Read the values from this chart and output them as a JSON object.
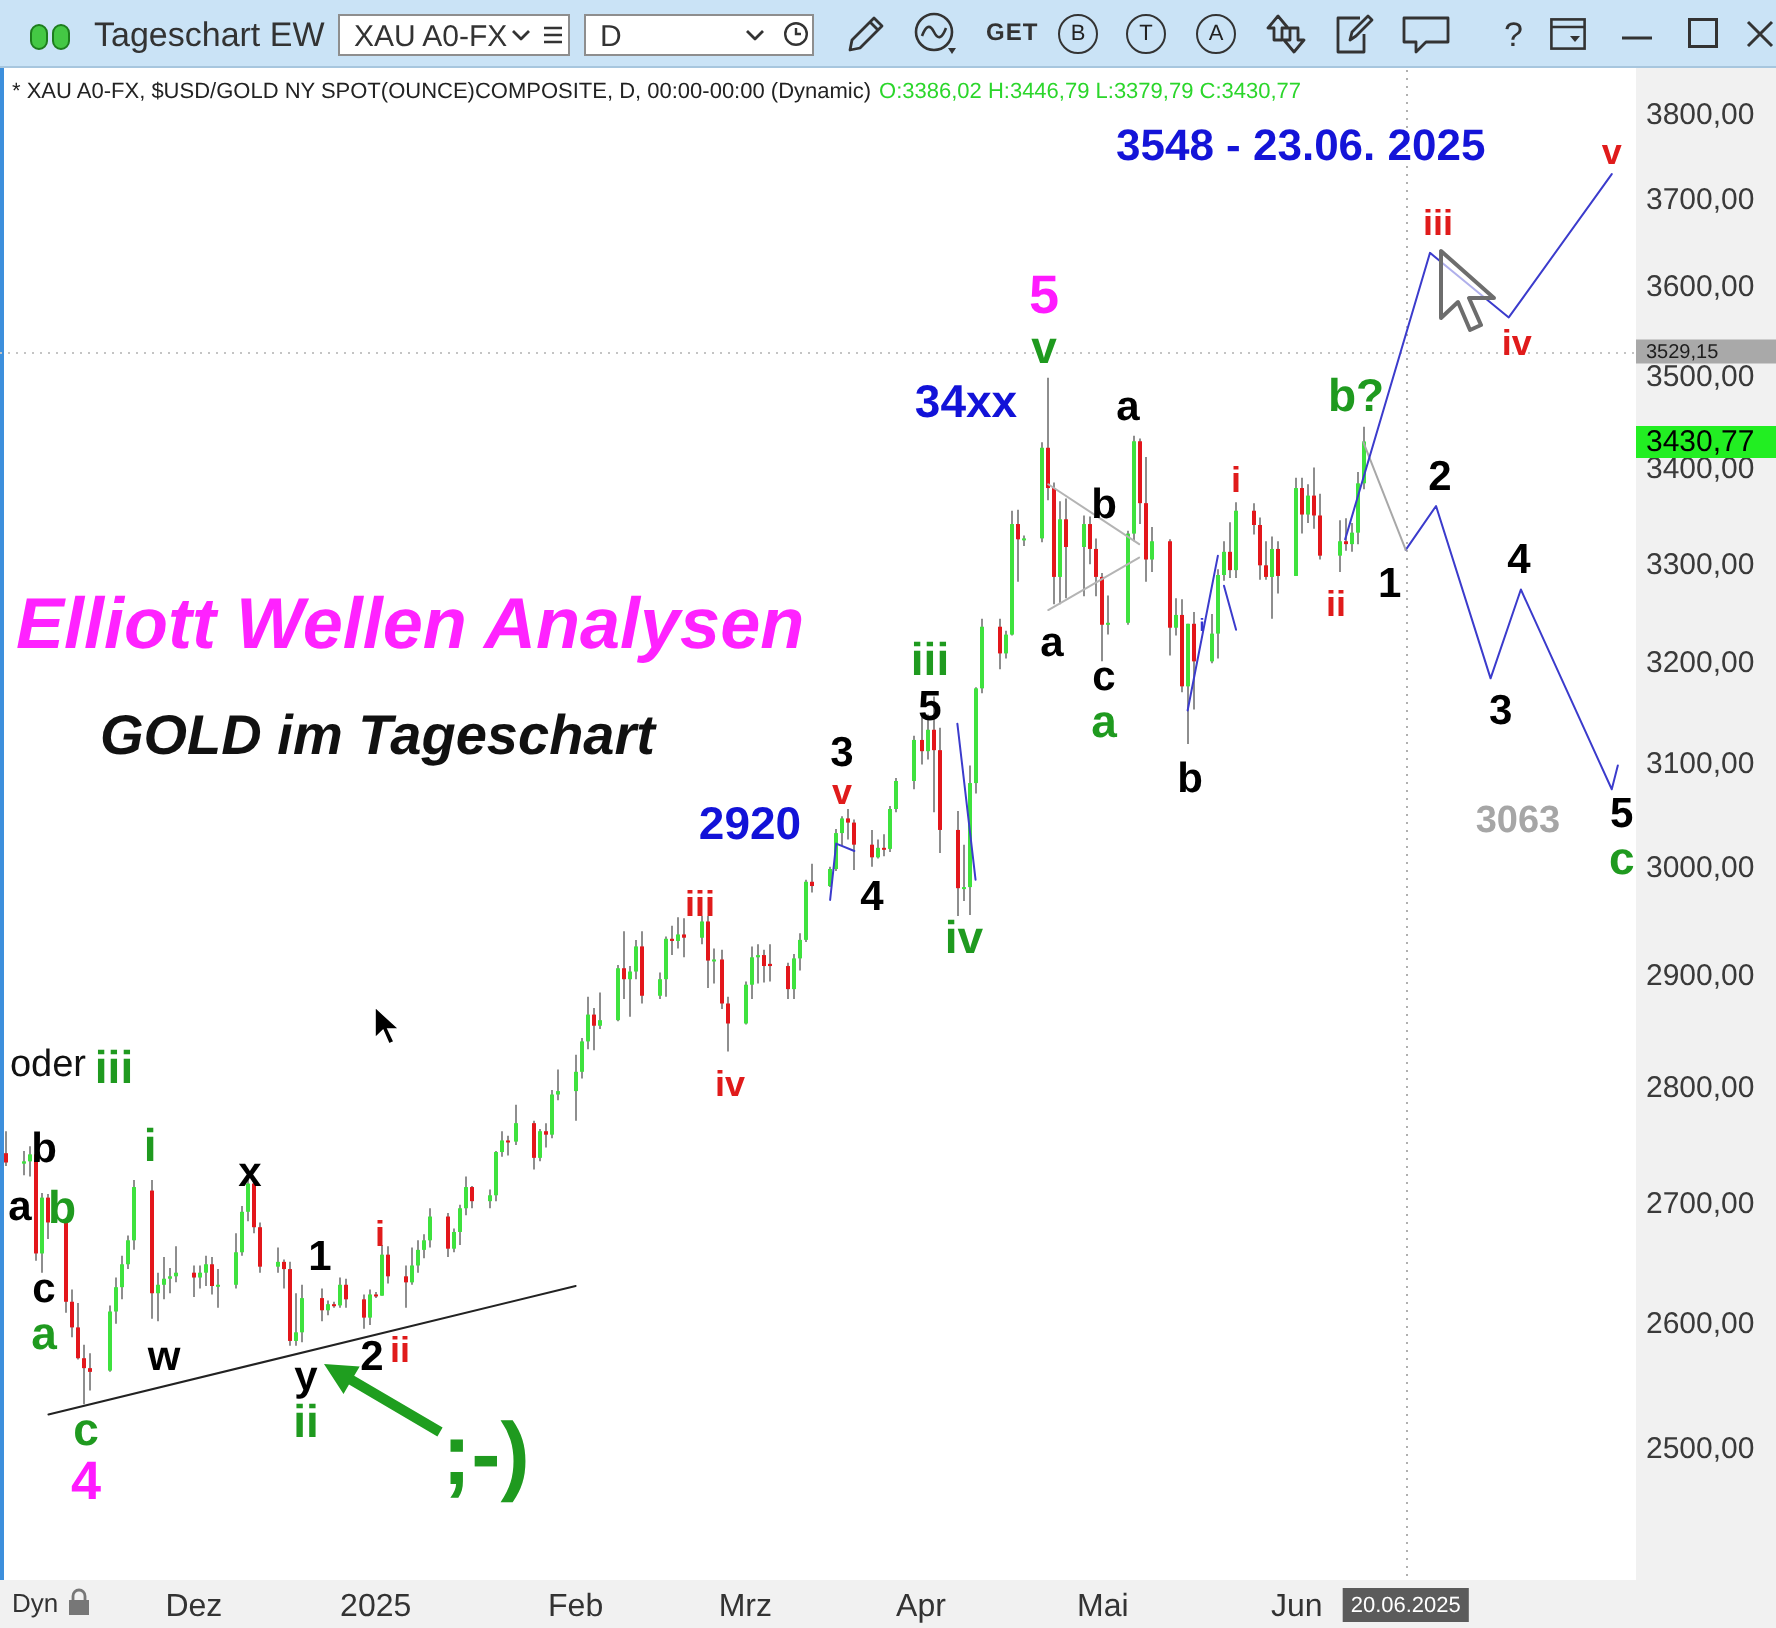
{
  "chart_data": {
    "type": "candlestick",
    "title": "Elliott Wellen Analysen",
    "subtitle": "GOLD im Tageschart",
    "log": true,
    "xlim": [
      "2024-10-31",
      "2025-07-28"
    ],
    "xticks": [
      {
        "value": "2024-12-02",
        "label": "Dez"
      },
      {
        "value": "2025-01-01",
        "label": "2025"
      },
      {
        "value": "2025-02-03",
        "label": "Feb"
      },
      {
        "value": "2025-03-03",
        "label": "Mrz"
      },
      {
        "value": "2025-04-01",
        "label": "Apr"
      },
      {
        "value": "2025-05-01",
        "label": "Mai"
      },
      {
        "value": "2025-06-02",
        "label": "Jun"
      }
    ],
    "ylim": [
      2400,
      3855
    ],
    "yticks": [
      {
        "value": 2500,
        "label": "2500,00"
      },
      {
        "value": 2600,
        "label": "2600,00"
      },
      {
        "value": 2700,
        "label": "2700,00"
      },
      {
        "value": 2800,
        "label": "2800,00"
      },
      {
        "value": 2900,
        "label": "2900,00"
      },
      {
        "value": 3000,
        "label": "3000,00"
      },
      {
        "value": 3100,
        "label": "3100,00"
      },
      {
        "value": 3200,
        "label": "3200,00"
      },
      {
        "value": 3300,
        "label": "3300,00"
      },
      {
        "value": 3400,
        "label": "3400,00"
      },
      {
        "value": 3500,
        "label": "3500,00"
      },
      {
        "value": 3600,
        "label": "3600,00"
      },
      {
        "value": 3700,
        "label": "3700,00"
      },
      {
        "value": 3800,
        "label": "3800,00"
      }
    ],
    "x": [
      "2024-11-01",
      "2024-11-04",
      "2024-11-05",
      "2024-11-06",
      "2024-11-07",
      "2024-11-08",
      "2024-11-11",
      "2024-11-12",
      "2024-11-13",
      "2024-11-14",
      "2024-11-15",
      "2024-11-18",
      "2024-11-19",
      "2024-11-20",
      "2024-11-21",
      "2024-11-22",
      "2024-11-25",
      "2024-11-26",
      "2024-11-27",
      "2024-11-28",
      "2024-11-29",
      "2024-12-02",
      "2024-12-03",
      "2024-12-04",
      "2024-12-05",
      "2024-12-06",
      "2024-12-09",
      "2024-12-10",
      "2024-12-11",
      "2024-12-12",
      "2024-12-13",
      "2024-12-16",
      "2024-12-17",
      "2024-12-18",
      "2024-12-19",
      "2024-12-20",
      "2024-12-23",
      "2024-12-24",
      "2024-12-25",
      "2024-12-26",
      "2024-12-27",
      "2024-12-30",
      "2024-12-31",
      "2025-01-01",
      "2025-01-02",
      "2025-01-03",
      "2025-01-06",
      "2025-01-07",
      "2025-01-08",
      "2025-01-09",
      "2025-01-10",
      "2025-01-13",
      "2025-01-14",
      "2025-01-15",
      "2025-01-16",
      "2025-01-17",
      "2025-01-20",
      "2025-01-21",
      "2025-01-22",
      "2025-01-23",
      "2025-01-24",
      "2025-01-27",
      "2025-01-28",
      "2025-01-29",
      "2025-01-30",
      "2025-01-31",
      "2025-02-03",
      "2025-02-04",
      "2025-02-05",
      "2025-02-06",
      "2025-02-07",
      "2025-02-10",
      "2025-02-11",
      "2025-02-12",
      "2025-02-13",
      "2025-02-14",
      "2025-02-17",
      "2025-02-18",
      "2025-02-19",
      "2025-02-20",
      "2025-02-21",
      "2025-02-24",
      "2025-02-25",
      "2025-02-26",
      "2025-02-27",
      "2025-02-28",
      "2025-03-03",
      "2025-03-04",
      "2025-03-05",
      "2025-03-06",
      "2025-03-07",
      "2025-03-10",
      "2025-03-11",
      "2025-03-12",
      "2025-03-13",
      "2025-03-14",
      "2025-03-17",
      "2025-03-18",
      "2025-03-19",
      "2025-03-20",
      "2025-03-21",
      "2025-03-24",
      "2025-03-25",
      "2025-03-26",
      "2025-03-27",
      "2025-03-28",
      "2025-03-31",
      "2025-04-01",
      "2025-04-02",
      "2025-04-03",
      "2025-04-04",
      "2025-04-07",
      "2025-04-08",
      "2025-04-09",
      "2025-04-10",
      "2025-04-11",
      "2025-04-14",
      "2025-04-15",
      "2025-04-16",
      "2025-04-17",
      "2025-04-18",
      "2025-04-21",
      "2025-04-22",
      "2025-04-23",
      "2025-04-24",
      "2025-04-25",
      "2025-04-28",
      "2025-04-29",
      "2025-04-30",
      "2025-05-01",
      "2025-05-02",
      "2025-05-05",
      "2025-05-06",
      "2025-05-07",
      "2025-05-08",
      "2025-05-09",
      "2025-05-12",
      "2025-05-13",
      "2025-05-14",
      "2025-05-15",
      "2025-05-16",
      "2025-05-19",
      "2025-05-20",
      "2025-05-21",
      "2025-05-22",
      "2025-05-23",
      "2025-05-26",
      "2025-05-27",
      "2025-05-28",
      "2025-05-29",
      "2025-05-30",
      "2025-06-02",
      "2025-06-03",
      "2025-06-04",
      "2025-06-05",
      "2025-06-06",
      "2025-06-09",
      "2025-06-10",
      "2025-06-11",
      "2025-06-12",
      "2025-06-13"
    ],
    "ohlc": [
      [
        2744,
        2763,
        2733,
        2736
      ],
      [
        2735,
        2746,
        2725,
        2737
      ],
      [
        2737,
        2750,
        2724,
        2743
      ],
      [
        2743,
        2749,
        2653,
        2659
      ],
      [
        2659,
        2710,
        2643,
        2706
      ],
      [
        2706,
        2709,
        2671,
        2685
      ],
      [
        2685,
        2686,
        2610,
        2619
      ],
      [
        2619,
        2629,
        2590,
        2598
      ],
      [
        2598,
        2618,
        2572,
        2573
      ],
      [
        2573,
        2584,
        2536,
        2565
      ],
      [
        2565,
        2577,
        2547,
        2562
      ],
      [
        2563,
        2616,
        2562,
        2611
      ],
      [
        2611,
        2639,
        2601,
        2631
      ],
      [
        2631,
        2657,
        2621,
        2650
      ],
      [
        2650,
        2674,
        2646,
        2670
      ],
      [
        2670,
        2721,
        2662,
        2715
      ],
      [
        2712,
        2721,
        2605,
        2626
      ],
      [
        2626,
        2643,
        2603,
        2633
      ],
      [
        2633,
        2656,
        2621,
        2638
      ],
      [
        2638,
        2647,
        2626,
        2640
      ],
      [
        2640,
        2665,
        2635,
        2643
      ],
      [
        2643,
        2649,
        2623,
        2639
      ],
      [
        2639,
        2649,
        2630,
        2643
      ],
      [
        2643,
        2657,
        2632,
        2650
      ],
      [
        2650,
        2656,
        2625,
        2632
      ],
      [
        2632,
        2646,
        2614,
        2633
      ],
      [
        2633,
        2676,
        2630,
        2660
      ],
      [
        2660,
        2699,
        2657,
        2694
      ],
      [
        2694,
        2726,
        2686,
        2718
      ],
      [
        2718,
        2721,
        2676,
        2681
      ],
      [
        2681,
        2685,
        2643,
        2648
      ],
      [
        2648,
        2664,
        2643,
        2652
      ],
      [
        2652,
        2654,
        2630,
        2646
      ],
      [
        2646,
        2652,
        2583,
        2587
      ],
      [
        2587,
        2626,
        2583,
        2594
      ],
      [
        2594,
        2633,
        2586,
        2622
      ],
      [
        2622,
        2630,
        2603,
        2612
      ],
      [
        2612,
        2620,
        2608,
        2617
      ],
      [
        2617,
        2619,
        2614,
        2616
      ],
      [
        2616,
        2639,
        2614,
        2633
      ],
      [
        2633,
        2638,
        2614,
        2621
      ],
      [
        2621,
        2625,
        2597,
        2606
      ],
      [
        2606,
        2629,
        2600,
        2625
      ],
      [
        2625,
        2627,
        2622,
        2624
      ],
      [
        2624,
        2666,
        2624,
        2658
      ],
      [
        2658,
        2665,
        2634,
        2640
      ],
      [
        2640,
        2649,
        2614,
        2635
      ],
      [
        2635,
        2664,
        2633,
        2649
      ],
      [
        2649,
        2670,
        2643,
        2662
      ],
      [
        2662,
        2675,
        2655,
        2670
      ],
      [
        2670,
        2697,
        2664,
        2690
      ],
      [
        2690,
        2693,
        2656,
        2663
      ],
      [
        2663,
        2680,
        2660,
        2677
      ],
      [
        2677,
        2700,
        2666,
        2697
      ],
      [
        2697,
        2724,
        2691,
        2715
      ],
      [
        2715,
        2716,
        2697,
        2703
      ],
      [
        2703,
        2713,
        2697,
        2708
      ],
      [
        2708,
        2746,
        2703,
        2745
      ],
      [
        2745,
        2763,
        2741,
        2755
      ],
      [
        2755,
        2759,
        2742,
        2754
      ],
      [
        2754,
        2786,
        2751,
        2770
      ],
      [
        2770,
        2772,
        2730,
        2740
      ],
      [
        2740,
        2765,
        2737,
        2763
      ],
      [
        2763,
        2770,
        2749,
        2760
      ],
      [
        2760,
        2799,
        2757,
        2795
      ],
      [
        2795,
        2817,
        2790,
        2798
      ],
      [
        2798,
        2830,
        2772,
        2815
      ],
      [
        2815,
        2845,
        2809,
        2842
      ],
      [
        2842,
        2882,
        2835,
        2866
      ],
      [
        2866,
        2872,
        2834,
        2856
      ],
      [
        2856,
        2886,
        2853,
        2861
      ],
      [
        2861,
        2911,
        2860,
        2908
      ],
      [
        2908,
        2942,
        2880,
        2898
      ],
      [
        2898,
        2910,
        2864,
        2905
      ],
      [
        2905,
        2934,
        2898,
        2928
      ],
      [
        2928,
        2942,
        2876,
        2883
      ],
      [
        2883,
        2904,
        2880,
        2898
      ],
      [
        2898,
        2937,
        2882,
        2935
      ],
      [
        2935,
        2947,
        2920,
        2933
      ],
      [
        2933,
        2955,
        2926,
        2939
      ],
      [
        2939,
        2954,
        2918,
        2936
      ],
      [
        2936,
        2956,
        2930,
        2951
      ],
      [
        2951,
        2956,
        2890,
        2915
      ],
      [
        2915,
        2926,
        2894,
        2916
      ],
      [
        2916,
        2925,
        2871,
        2876
      ],
      [
        2876,
        2882,
        2833,
        2858
      ],
      [
        2858,
        2896,
        2857,
        2893
      ],
      [
        2893,
        2928,
        2880,
        2918
      ],
      [
        2918,
        2930,
        2894,
        2920
      ],
      [
        2920,
        2925,
        2895,
        2910
      ],
      [
        2912,
        2930,
        2896,
        2910
      ],
      [
        2910,
        2913,
        2880,
        2889
      ],
      [
        2889,
        2921,
        2880,
        2917
      ],
      [
        2917,
        2940,
        2906,
        2934
      ],
      [
        2934,
        2990,
        2932,
        2988
      ],
      [
        2988,
        3005,
        2978,
        2984
      ],
      [
        2984,
        3002,
        2983,
        3000
      ],
      [
        3000,
        3038,
        2998,
        3034
      ],
      [
        3034,
        3050,
        3022,
        3048
      ],
      [
        3048,
        3057,
        3028,
        3044
      ],
      [
        3044,
        3047,
        2999,
        3023
      ],
      [
        3023,
        3037,
        3002,
        3011
      ],
      [
        3011,
        3028,
        3010,
        3020
      ],
      [
        3020,
        3033,
        3012,
        3019
      ],
      [
        3019,
        3060,
        3016,
        3057
      ],
      [
        3057,
        3087,
        3054,
        3084
      ],
      [
        3084,
        3128,
        3076,
        3124
      ],
      [
        3124,
        3149,
        3100,
        3113
      ],
      [
        3113,
        3149,
        3105,
        3134
      ],
      [
        3134,
        3167,
        3054,
        3114
      ],
      [
        3114,
        3136,
        3015,
        3037
      ],
      [
        3037,
        3055,
        2956,
        2982
      ],
      [
        2982,
        3023,
        2970,
        2983
      ],
      [
        2983,
        3099,
        2957,
        3082
      ],
      [
        3082,
        3176,
        3072,
        3175
      ],
      [
        3175,
        3245,
        3170,
        3237
      ],
      [
        3237,
        3245,
        3194,
        3210
      ],
      [
        3210,
        3233,
        3205,
        3229
      ],
      [
        3229,
        3357,
        3228,
        3343
      ],
      [
        3343,
        3358,
        3283,
        3327
      ],
      [
        3327,
        3331,
        3320,
        3328
      ],
      [
        3328,
        3430,
        3324,
        3424
      ],
      [
        3424,
        3500,
        3368,
        3381
      ],
      [
        3381,
        3387,
        3260,
        3288
      ],
      [
        3288,
        3367,
        3260,
        3348
      ],
      [
        3348,
        3370,
        3266,
        3319
      ],
      [
        3319,
        3352,
        3268,
        3343
      ],
      [
        3343,
        3351,
        3301,
        3317
      ],
      [
        3317,
        3328,
        3268,
        3288
      ],
      [
        3288,
        3292,
        3202,
        3239
      ],
      [
        3239,
        3269,
        3229,
        3241
      ],
      [
        3241,
        3336,
        3239,
        3333
      ],
      [
        3333,
        3437,
        3325,
        3431
      ],
      [
        3431,
        3434,
        3343,
        3365
      ],
      [
        3365,
        3414,
        3283,
        3306
      ],
      [
        3306,
        3340,
        3293,
        3325
      ],
      [
        3325,
        3327,
        3208,
        3236
      ],
      [
        3236,
        3266,
        3228,
        3249
      ],
      [
        3249,
        3265,
        3171,
        3177
      ],
      [
        3177,
        3240,
        3120,
        3240
      ],
      [
        3240,
        3252,
        3154,
        3202
      ],
      [
        3202,
        3250,
        3200,
        3230
      ],
      [
        3230,
        3296,
        3205,
        3290
      ],
      [
        3290,
        3325,
        3284,
        3314
      ],
      [
        3314,
        3345,
        3287,
        3295
      ],
      [
        3295,
        3366,
        3287,
        3357
      ],
      [
        3357,
        3365,
        3332,
        3342
      ],
      [
        3342,
        3350,
        3285,
        3300
      ],
      [
        3300,
        3325,
        3285,
        3288
      ],
      [
        3288,
        3330,
        3245,
        3317
      ],
      [
        3317,
        3325,
        3271,
        3289
      ],
      [
        3289,
        3392,
        3289,
        3381
      ],
      [
        3381,
        3392,
        3333,
        3353
      ],
      [
        3353,
        3385,
        3344,
        3373
      ],
      [
        3373,
        3403,
        3338,
        3352
      ],
      [
        3352,
        3375,
        3306,
        3310
      ],
      [
        3310,
        3347,
        3293,
        3325
      ],
      [
        3325,
        3349,
        3315,
        3322
      ],
      [
        3322,
        3344,
        3314,
        3334
      ],
      [
        3334,
        3398,
        3322,
        3386
      ],
      [
        3386.02,
        3446.79,
        3379.79,
        3430.77
      ]
    ],
    "series": [
      {
        "type": "line",
        "color": "#222222",
        "x": [
          "2024-11-08",
          "2025-02-03"
        ],
        "values": [
          2528,
          2632
        ]
      },
      {
        "type": "line",
        "color": "#b4b4b4",
        "x": [
          "2025-04-22",
          "2025-05-07"
        ],
        "values": [
          3385,
          3322
        ]
      },
      {
        "type": "line",
        "color": "#b4b4b4",
        "x": [
          "2025-04-22",
          "2025-05-07"
        ],
        "values": [
          3254,
          3308
        ]
      },
      {
        "type": "line",
        "color": "#3b3bcc",
        "x": [
          "2025-03-17",
          "2025-03-18",
          "2025-03-21"
        ],
        "values": [
          2971,
          3024,
          3017
        ]
      },
      {
        "type": "line",
        "color": "#3b3bcc",
        "x": [
          "2025-04-07",
          "2025-04-10"
        ],
        "values": [
          3140,
          2990
        ]
      },
      {
        "type": "line",
        "color": "#3b3bcc",
        "x": [
          "2025-05-15",
          "2025-05-20"
        ],
        "values": [
          3153,
          3310
        ]
      },
      {
        "type": "line",
        "color": "#3b3bcc",
        "x": [
          "2025-05-21",
          "2025-05-23"
        ],
        "values": [
          3279,
          3234
        ]
      },
      {
        "type": "line",
        "color": "#3b3bcc",
        "x": [
          "2025-06-10",
          "2025-06-24",
          "2025-07-07",
          "2025-07-24"
        ],
        "values": [
          3327,
          3640,
          3567,
          3731
        ]
      },
      {
        "type": "line",
        "color": "#a8a8a8",
        "x": [
          "2025-06-13",
          "2025-06-20"
        ],
        "values": [
          3430,
          3316
        ]
      },
      {
        "type": "line",
        "color": "#3b3bcc",
        "x": [
          "2025-06-20",
          "2025-06-25",
          "2025-07-04",
          "2025-07-09",
          "2025-07-24",
          "2025-07-25"
        ],
        "values": [
          3316,
          3362,
          3185,
          3275,
          3076,
          3099
        ]
      }
    ],
    "ref_lines": [
      {
        "axis": "y",
        "value": 3529.15,
        "label": "3529,15",
        "line_style": "dotted",
        "color": "#c4c4c4"
      },
      {
        "axis": "x",
        "value": "2025-06-20",
        "label": "20.06.2025",
        "line_style": "dotted",
        "color": "#b0b0b0"
      }
    ],
    "annotations": [
      "Tageschart EW",
      "XAU A0-FX",
      "D",
      "GET",
      "B",
      "T",
      "A",
      "?",
      "* XAU A0-FX, $USD/GOLD NY SPOT(OUNCE)COMPOSITE, D, 00:00-00:00 (Dynamic)",
      "O:3386,02 H:3446,79 L:3379,79 C:3430,77",
      "3548 - 23.06. 2025",
      ";-)",
      "Dyn",
      "3430,77",
      "a",
      "b",
      "b",
      "c",
      "a",
      "c",
      "4",
      "oder",
      "iii",
      "i",
      "w",
      "x",
      "y",
      "ii",
      "1",
      "2",
      "i",
      "ii",
      "iii",
      "iv",
      "2920",
      "3",
      "v",
      "4",
      "iii",
      "5",
      "iv",
      "34xx",
      "5",
      "v",
      "a",
      "b",
      "c",
      "a",
      "a",
      "b",
      "i",
      "i",
      "ii",
      "b?",
      {
        "text": "1",
        "x": "2025-06-20",
        "y": 3316
      },
      {
        "text": "2",
        "x": "2025-06-25",
        "y": 3362
      },
      {
        "text": "3",
        "x": "2025-07-04",
        "y": 3185
      },
      {
        "text": "4",
        "x": "2025-07-09",
        "y": 3275
      },
      {
        "text": "5",
        "x": "2025-07-24",
        "y": 3076
      },
      {
        "text": "c",
        "x": "2025-07-24",
        "y": 3076
      },
      "3063",
      {
        "text": "iii",
        "x": "2025-06-24",
        "y": 3640
      },
      {
        "text": "iv",
        "x": "2025-07-07",
        "y": 3567
      },
      {
        "text": "v",
        "x": "2025-07-24",
        "y": 3731
      }
    ]
  }
}
